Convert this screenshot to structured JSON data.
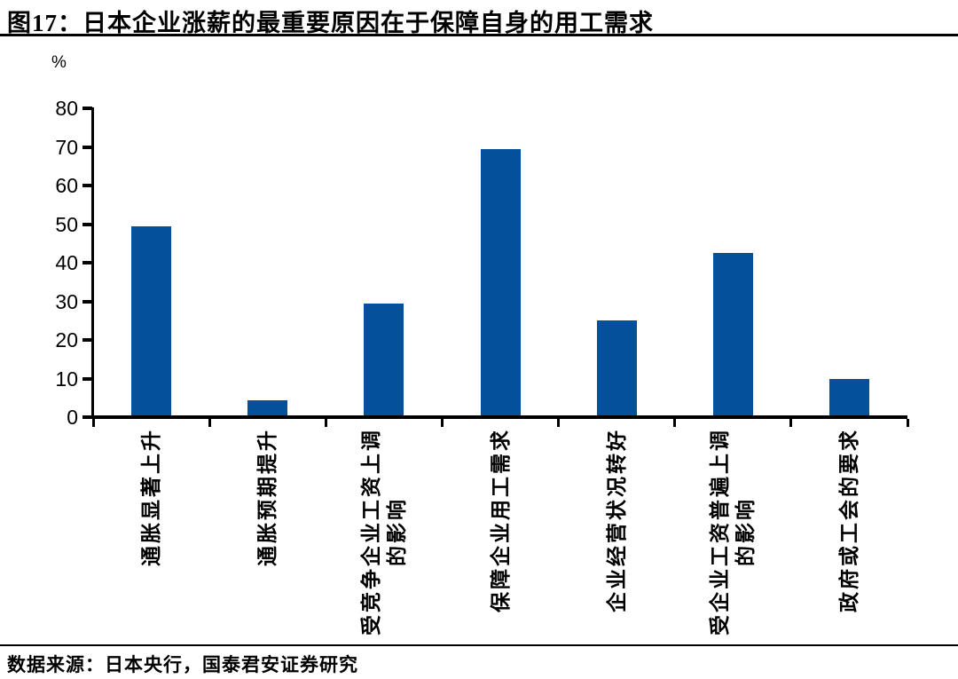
{
  "title": "图17：日本企业涨薪的最重要原因在于保障自身的用工需求",
  "source": "数据来源：日本央行，国泰君安证券研究",
  "chart_data": {
    "type": "bar",
    "title": "图17：日本企业涨薪的最重要原因在于保障自身的用工需求",
    "ylabel": "%",
    "xlabel": "",
    "categories": [
      [
        "通胀显著上升"
      ],
      [
        "通胀预期提升"
      ],
      [
        "受竞争企业工资上调",
        "的影响"
      ],
      [
        "保障企业用工需求"
      ],
      [
        "企业经营状况转好"
      ],
      [
        "受企业工资普遍上调",
        "的影响"
      ],
      [
        "政府或工会的要求"
      ]
    ],
    "values": [
      49,
      4,
      29,
      69,
      24.5,
      42,
      9.5
    ],
    "ylim": [
      0,
      80
    ],
    "yticks": [
      0,
      10,
      20,
      30,
      40,
      50,
      60,
      70,
      80
    ],
    "grid": false,
    "legend": null,
    "bar_color": "#04509B",
    "axis_color": "#000000",
    "label_rotation_deg": -90
  }
}
